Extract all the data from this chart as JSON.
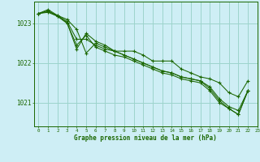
{
  "bg_color": "#ceeef5",
  "grid_color": "#9dd4cc",
  "line_color": "#1a6600",
  "xlabel": "Graphe pression niveau de la mer (hPa)",
  "xlim": [
    -0.5,
    23
  ],
  "ylim": [
    1020.4,
    1023.55
  ],
  "yticks": [
    1021,
    1022,
    1023
  ],
  "xticks": [
    0,
    1,
    2,
    3,
    4,
    5,
    6,
    7,
    8,
    9,
    10,
    11,
    12,
    13,
    14,
    15,
    16,
    17,
    18,
    19,
    20,
    21,
    22,
    23
  ],
  "series": [
    {
      "x": [
        0,
        1,
        2,
        3,
        4,
        5,
        6,
        7,
        8,
        9,
        10,
        11,
        12,
        13,
        14,
        15,
        16,
        17,
        18,
        19,
        20,
        21,
        22
      ],
      "y": [
        1023.25,
        1023.35,
        1023.2,
        1023.1,
        1022.85,
        1022.25,
        1022.5,
        1022.4,
        1022.3,
        1022.3,
        1022.3,
        1022.2,
        1022.05,
        1022.05,
        1022.05,
        1021.85,
        1021.75,
        1021.65,
        1021.6,
        1021.5,
        1021.25,
        1021.15,
        1021.55
      ]
    },
    {
      "x": [
        0,
        1,
        2,
        3,
        4,
        5,
        6,
        7,
        8,
        9,
        10,
        11,
        12,
        13,
        14,
        15,
        16,
        17,
        18,
        19,
        20,
        21,
        22
      ],
      "y": [
        1023.25,
        1023.3,
        1023.2,
        1023.05,
        1022.6,
        1022.6,
        1022.45,
        1022.35,
        1022.3,
        1022.2,
        1022.1,
        1022.0,
        1021.9,
        1021.8,
        1021.75,
        1021.65,
        1021.6,
        1021.55,
        1021.35,
        1021.05,
        1020.85,
        1020.7,
        1021.3
      ]
    },
    {
      "x": [
        0,
        1,
        2,
        3,
        4,
        5,
        6,
        7,
        8,
        9,
        10,
        11,
        12,
        13,
        14,
        15,
        16,
        17,
        18,
        19,
        20,
        21,
        22
      ],
      "y": [
        1023.25,
        1023.28,
        1023.18,
        1023.0,
        1022.45,
        1022.7,
        1022.4,
        1022.3,
        1022.2,
        1022.15,
        1022.05,
        1021.95,
        1021.85,
        1021.75,
        1021.7,
        1021.6,
        1021.55,
        1021.5,
        1021.3,
        1021.0,
        1020.85,
        1020.7,
        1021.3
      ]
    },
    {
      "x": [
        0,
        1,
        2,
        3,
        4,
        5,
        6,
        7,
        8,
        9,
        10,
        11,
        12,
        13,
        14,
        15,
        16,
        17,
        18,
        19,
        20,
        21,
        22
      ],
      "y": [
        1023.25,
        1023.32,
        1023.18,
        1023.02,
        1022.35,
        1022.75,
        1022.55,
        1022.45,
        1022.3,
        1022.2,
        1022.1,
        1022.0,
        1021.9,
        1021.8,
        1021.75,
        1021.65,
        1021.6,
        1021.55,
        1021.4,
        1021.1,
        1020.9,
        1020.8,
        1021.3
      ]
    }
  ]
}
